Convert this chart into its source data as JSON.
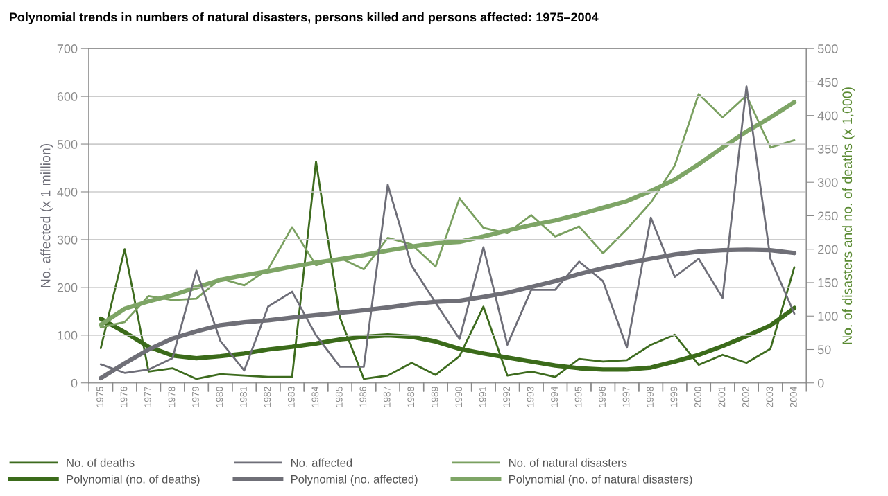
{
  "chart_data": {
    "type": "line",
    "title": "Polynomial trends in numbers of natural disasters, persons killed and persons affected: 1975–2004",
    "ylabel": "No. affected (x 1 million)",
    "y2label": "No. of disasters and no. of deaths (x 1,000)",
    "x": [
      1975,
      1976,
      1977,
      1978,
      1979,
      1980,
      1981,
      1982,
      1983,
      1984,
      1985,
      1986,
      1987,
      1988,
      1989,
      1990,
      1991,
      1992,
      1993,
      1994,
      1995,
      1996,
      1997,
      1998,
      1999,
      2000,
      2001,
      2002,
      2003,
      2004
    ],
    "xlim": [
      1974.5,
      2004.5
    ],
    "xticks": [
      1975,
      1976,
      1977,
      1978,
      1979,
      1980,
      1981,
      1982,
      1983,
      1984,
      1985,
      1986,
      1987,
      1988,
      1989,
      1990,
      1991,
      1992,
      1993,
      1994,
      1995,
      1996,
      1997,
      1998,
      1999,
      2000,
      2001,
      2002,
      2003,
      2004
    ],
    "ylim": [
      0,
      700
    ],
    "yticks": [
      0,
      100,
      200,
      300,
      400,
      500,
      600,
      700
    ],
    "y2lim": [
      0,
      500
    ],
    "y2ticks": [
      0,
      50,
      100,
      150,
      200,
      250,
      300,
      350,
      400,
      450,
      500
    ],
    "grid": "y",
    "legend": "bottom",
    "marker": "none",
    "line_style": "solid",
    "series": [
      {
        "name": "No. of deaths",
        "color": "#3d6b1e",
        "axis": "y2",
        "values": [
          52,
          200,
          17,
          22,
          6,
          13,
          11,
          9,
          9,
          331,
          98,
          6,
          11,
          30,
          12,
          40,
          114,
          11,
          17,
          9,
          36,
          32,
          34,
          57,
          72,
          27,
          42,
          30,
          51,
          173
        ]
      },
      {
        "name": "Polynomial (no. of deaths)",
        "color": "#3b6b1a",
        "axis": "y2",
        "x": [
          1975,
          1976,
          1977,
          1978,
          1979,
          1980,
          1981,
          1982,
          1983,
          1984,
          1985,
          1986,
          1987,
          1988,
          1989,
          1990,
          1991,
          1992,
          1993,
          1994,
          1995,
          1996,
          1997,
          1998,
          1999,
          2000,
          2001,
          2002,
          2003,
          2004
        ],
        "values": [
          96,
          76,
          54,
          41,
          37,
          40,
          44,
          50,
          54,
          59,
          65,
          69,
          71,
          69,
          62,
          51,
          44,
          38,
          32,
          26,
          22,
          20,
          20,
          23,
          32,
          42,
          55,
          70,
          86,
          112
        ]
      },
      {
        "name": "No. affected",
        "color": "#6e6e78",
        "values": [
          39,
          21,
          28,
          52,
          235,
          88,
          26,
          160,
          191,
          100,
          34,
          34,
          415,
          245,
          168,
          92,
          284,
          80,
          195,
          195,
          254,
          213,
          74,
          346,
          222,
          260,
          178,
          621,
          260,
          145
        ]
      },
      {
        "name": "Polynomial (no. affected)",
        "color": "#6f6f77",
        "x": [
          1975,
          1976,
          1977,
          1978,
          1979,
          1980,
          1981,
          1982,
          1983,
          1984,
          1985,
          1986,
          1987,
          1988,
          1989,
          1990,
          1991,
          1992,
          1993,
          1994,
          1995,
          1996,
          1997,
          1998,
          1999,
          2000,
          2001,
          2002,
          2003,
          2004
        ],
        "values": [
          10,
          41,
          70,
          93,
          108,
          121,
          127,
          131,
          137,
          142,
          147,
          152,
          158,
          165,
          170,
          172,
          180,
          189,
          201,
          213,
          228,
          240,
          251,
          260,
          269,
          275,
          278,
          279,
          278,
          272
        ]
      },
      {
        "name": "No. of natural disasters",
        "color": "#7aa060",
        "axis": "y2",
        "values": [
          83,
          91,
          130,
          124,
          126,
          156,
          146,
          170,
          233,
          176,
          187,
          170,
          217,
          207,
          174,
          276,
          232,
          224,
          251,
          219,
          234,
          194,
          230,
          270,
          325,
          432,
          397,
          430,
          352,
          363
        ]
      },
      {
        "name": "Polynomial (no. of natural disasters)",
        "color": "#7ea566",
        "axis": "y2",
        "x": [
          1975,
          1976,
          1977,
          1978,
          1979,
          1980,
          1981,
          1982,
          1983,
          1984,
          1985,
          1986,
          1987,
          1988,
          1989,
          1990,
          1991,
          1992,
          1993,
          1994,
          1995,
          1996,
          1997,
          1998,
          1999,
          2000,
          2001,
          2002,
          2003,
          2004
        ],
        "values": [
          87,
          111,
          122,
          131,
          143,
          154,
          161,
          167,
          174,
          180,
          185,
          191,
          198,
          204,
          209,
          211,
          219,
          228,
          236,
          243,
          252,
          262,
          272,
          287,
          304,
          327,
          352,
          376,
          397,
          420
        ]
      }
    ]
  }
}
